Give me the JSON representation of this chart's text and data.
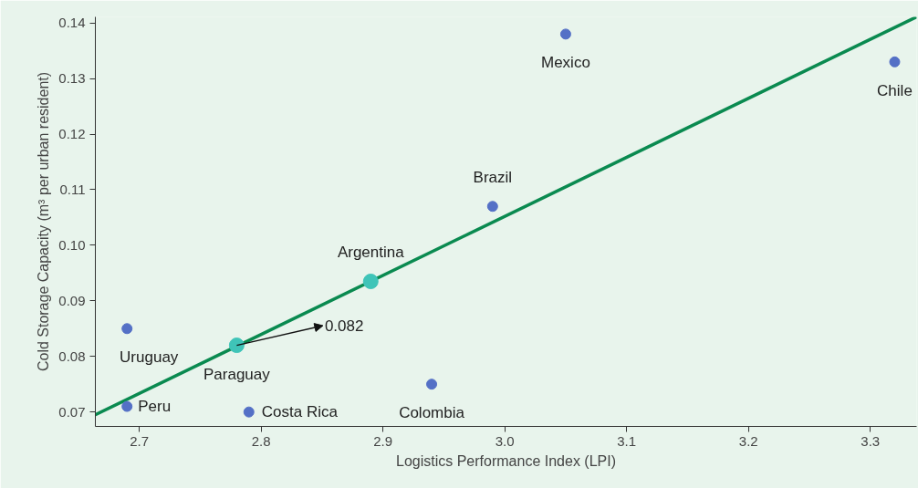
{
  "chart_data": {
    "type": "scatter",
    "xlabel": "Logistics Performance Index (LPI)",
    "ylabel": "Cold Storage Capacity (m³ per urban resident)",
    "xlim": [
      2.664,
      3.338
    ],
    "ylim": [
      0.0674,
      0.1411
    ],
    "xticks": [
      {
        "value": 2.7,
        "label": "2.7"
      },
      {
        "value": 2.8,
        "label": "2.8"
      },
      {
        "value": 2.9,
        "label": "2.9"
      },
      {
        "value": 3.0,
        "label": "3.0"
      },
      {
        "value": 3.1,
        "label": "3.1"
      },
      {
        "value": 3.2,
        "label": "3.2"
      },
      {
        "value": 3.3,
        "label": "3.3"
      }
    ],
    "yticks": [
      {
        "value": 0.07,
        "label": "0.07"
      },
      {
        "value": 0.08,
        "label": "0.08"
      },
      {
        "value": 0.09,
        "label": "0.09"
      },
      {
        "value": 0.1,
        "label": "0.10"
      },
      {
        "value": 0.11,
        "label": "0.11"
      },
      {
        "value": 0.12,
        "label": "0.12"
      },
      {
        "value": 0.13,
        "label": "0.13"
      },
      {
        "value": 0.14,
        "label": "0.14"
      }
    ],
    "grid": false,
    "marker": "circle",
    "series": [
      {
        "type": "line",
        "marker": "none",
        "color": "#0a8a50",
        "x": [
          2.664,
          3.338
        ],
        "values": [
          0.0695,
          0.1411
        ]
      },
      {
        "name": "Mexico",
        "color": "#5470c6",
        "x": [
          3.05
        ],
        "values": [
          0.138
        ]
      },
      {
        "name": "Chile",
        "color": "#5470c6",
        "x": [
          3.32
        ],
        "values": [
          0.133
        ]
      },
      {
        "name": "Brazil",
        "color": "#5470c6",
        "x": [
          2.99
        ],
        "values": [
          0.107
        ]
      },
      {
        "name": "Argentina",
        "color": "#3fc4b8",
        "x": [
          2.89
        ],
        "values": [
          0.0935
        ]
      },
      {
        "name": "Uruguay",
        "color": "#5470c6",
        "x": [
          2.69
        ],
        "values": [
          0.085
        ]
      },
      {
        "name": "Paraguay",
        "color": "#3fc4b8",
        "x": [
          2.78
        ],
        "values": [
          0.082
        ]
      },
      {
        "name": "Colombia",
        "color": "#5470c6",
        "x": [
          2.94
        ],
        "values": [
          0.075
        ]
      },
      {
        "name": "Peru",
        "color": "#5470c6",
        "x": [
          2.69
        ],
        "values": [
          0.071
        ]
      },
      {
        "name": "Costa Rica",
        "color": "#5470c6",
        "x": [
          2.79
        ],
        "values": [
          0.07
        ]
      }
    ],
    "annotations": [
      {
        "text": "0.082",
        "x": 2.78,
        "y": 0.082
      }
    ]
  }
}
